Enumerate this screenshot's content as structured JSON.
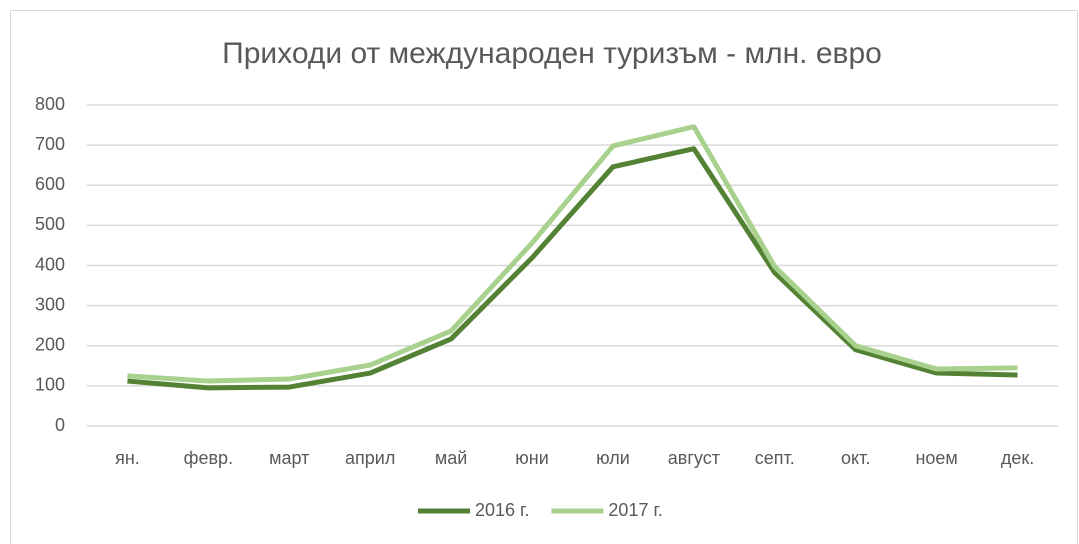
{
  "chart_data": {
    "type": "line",
    "title": "Приходи от международен туризъм - млн. евро",
    "categories": [
      "ян.",
      "февр.",
      "март",
      "април",
      "май",
      "юни",
      "юли",
      "август",
      "септ.",
      "окт.",
      "ноем",
      "дек."
    ],
    "series": [
      {
        "name": "2016 г.",
        "color": "#548235",
        "values": [
          112,
          95,
          97,
          132,
          217,
          419,
          646,
          691,
          382,
          190,
          132,
          127
        ]
      },
      {
        "name": "2017 г.",
        "color": "#a9d18e",
        "values": [
          125,
          112,
          117,
          152,
          237,
          456,
          698,
          746,
          397,
          200,
          142,
          145
        ]
      }
    ],
    "ylim": [
      0,
      800
    ],
    "yticks": [
      0,
      100,
      200,
      300,
      400,
      500,
      600,
      700,
      800
    ],
    "grid": true,
    "legend": "bottom"
  }
}
